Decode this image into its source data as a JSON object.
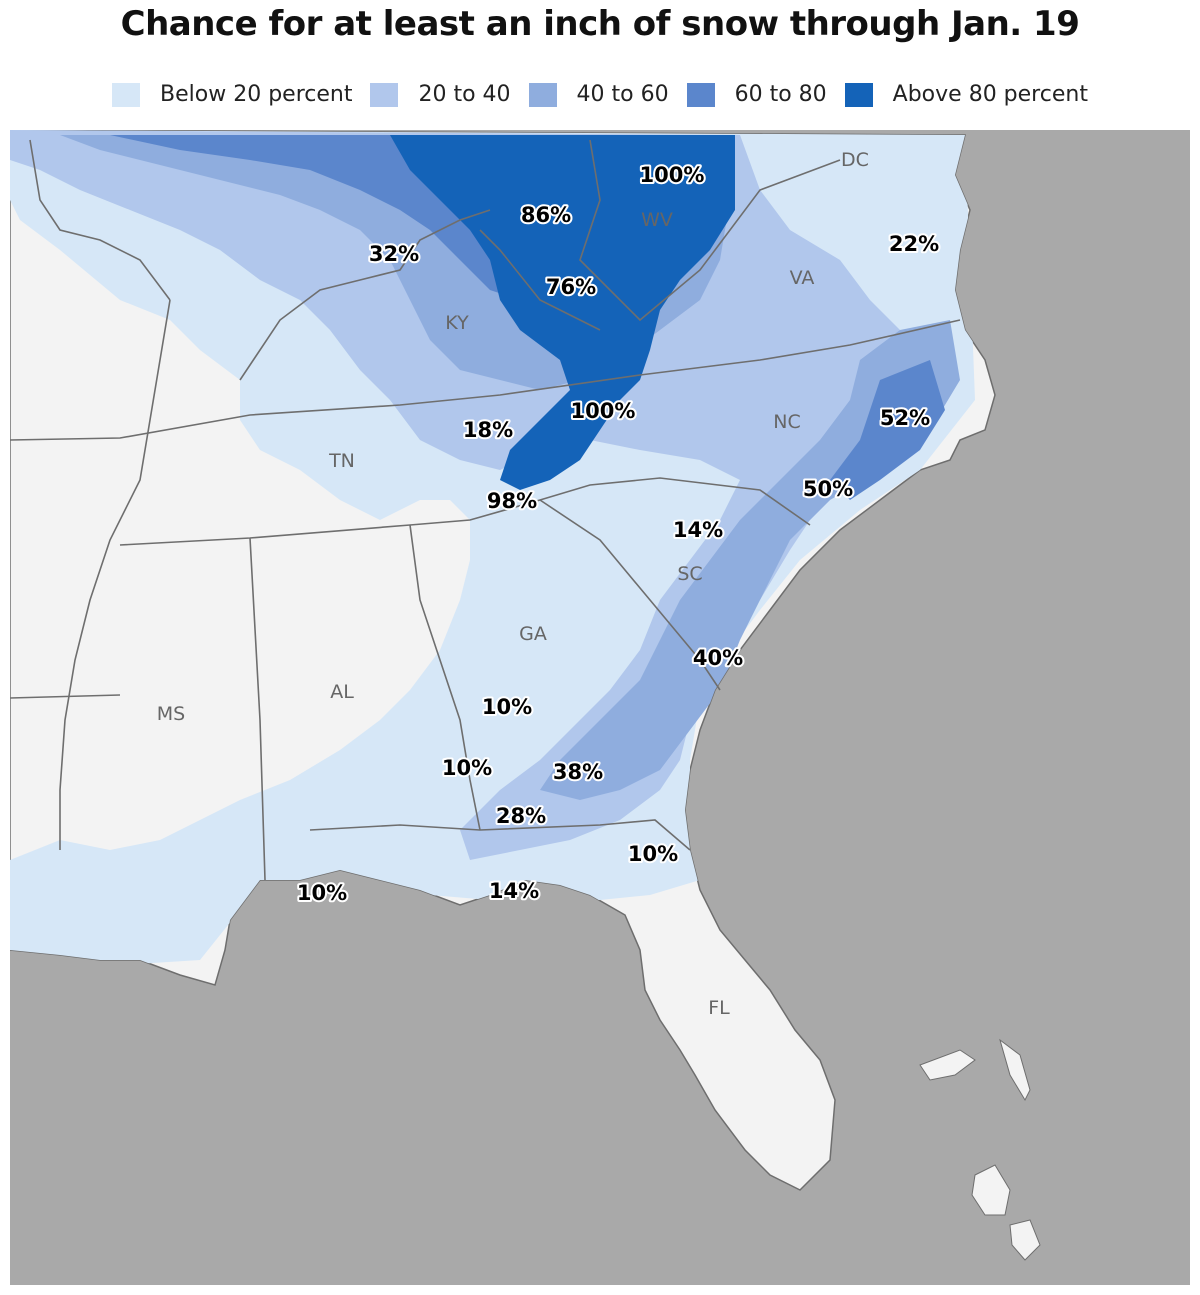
{
  "title": "Chance for at least an inch of snow through Jan. 19",
  "colors": {
    "ocean": "#a9a9a9",
    "land": "#f3f3f3",
    "below_20": "#d6e7f7",
    "20_40": "#b1c7ec",
    "40_60": "#8fadde",
    "60_80": "#5b86cc",
    "above_80": "#1463b8",
    "border": "#6e6e6e"
  },
  "legend": [
    {
      "label": "Below 20 percent",
      "color": "#d6e7f7"
    },
    {
      "label": "20 to 40",
      "color": "#b1c7ec"
    },
    {
      "label": "40 to 60",
      "color": "#8fadde"
    },
    {
      "label": "60 to 80",
      "color": "#5b86cc"
    },
    {
      "label": "Above 80 percent",
      "color": "#1463b8"
    }
  ],
  "states": {
    "dc": "DC",
    "wv": "WV",
    "va": "VA",
    "ky": "KY",
    "tn": "TN",
    "nc": "NC",
    "sc": "SC",
    "ga": "GA",
    "al": "AL",
    "ms": "MS",
    "fl": "FL"
  },
  "percent_labels": {
    "wv_north": "100%",
    "ky_east": "86%",
    "ky_north": "32%",
    "va_coast": "22%",
    "ky_southeast": "76%",
    "tn_east": "100%",
    "tn_central": "18%",
    "nc_coast": "52%",
    "nc_south": "50%",
    "tn_ga_border": "98%",
    "sc_north": "14%",
    "sc_coast": "40%",
    "ga_central": "10%",
    "ga_southwest": "10%",
    "ga_south": "38%",
    "ga_fl_border": "28%",
    "fl_northeast": "10%",
    "fl_panhandle": "14%",
    "al_coast": "10%"
  }
}
